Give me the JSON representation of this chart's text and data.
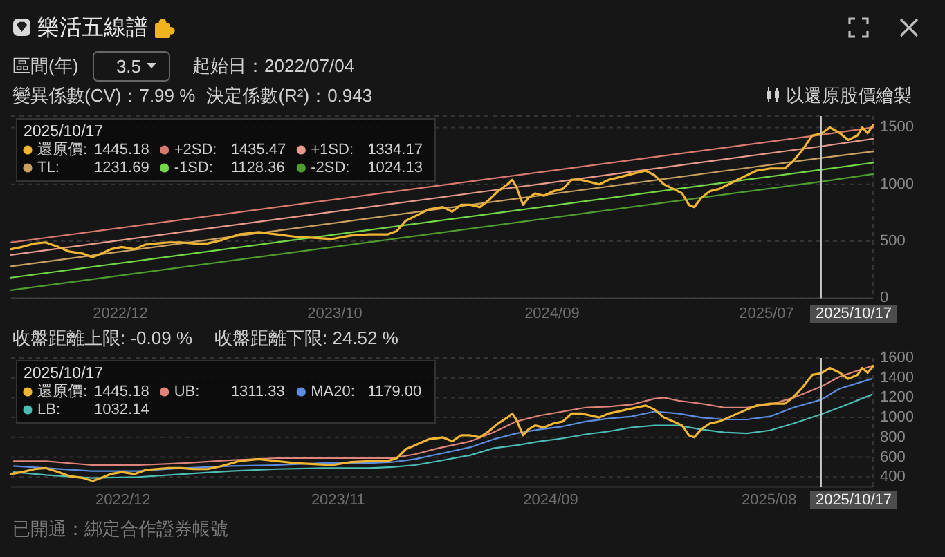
{
  "chart_data": [
    {
      "type": "line",
      "title": "樂活五線譜",
      "annotations": [
        "區間(年)",
        "3.5",
        "起始日：2022/07/04",
        "變異係數(CV)：7.99 %",
        "決定係數(R²)：0.943",
        "以還原股價繪製",
        "1445.18",
        "1435.47",
        "1334.17",
        "1231.69",
        "1128.36",
        "1024.13"
      ],
      "xlim": [
        "2022-07-04",
        "2026-01-02"
      ],
      "xticks": [
        {
          "value": "2022-12-13",
          "label": "2022/12"
        },
        {
          "value": "2023-10-27",
          "label": "2023/10"
        },
        {
          "value": "2024-09-13",
          "label": "2024/09"
        },
        {
          "value": "2025-07-28",
          "label": "2025/07"
        }
      ],
      "ylim": [
        0,
        1600
      ],
      "yticks": [
        0,
        500,
        1000,
        1500
      ],
      "grid": "y",
      "legend": "top left",
      "legend_title": "2025/10/17",
      "ref_lines": [
        {
          "axis": "x",
          "value": "2025-10-17",
          "label": "2025/10/17"
        }
      ],
      "series": [
        {
          "name": "還原價:",
          "color": "#f0b533",
          "x": [
            "2022-07-04",
            "2022-07-20",
            "2022-08-08",
            "2022-08-24",
            "2022-09-12",
            "2022-09-28",
            "2022-10-19",
            "2022-11-02",
            "2022-11-18",
            "2022-11-29",
            "2022-12-15",
            "2023-01-03",
            "2023-01-19",
            "2023-02-04",
            "2023-02-23",
            "2023-03-13",
            "2023-04-01",
            "2023-04-21",
            "2023-05-12",
            "2023-06-07",
            "2023-07-06",
            "2023-08-02",
            "2023-08-29",
            "2023-09-26",
            "2023-10-23",
            "2023-11-19",
            "2023-12-17",
            "2024-01-13",
            "2024-01-27",
            "2024-02-09",
            "2024-02-23",
            "2024-03-14",
            "2024-04-04",
            "2024-04-18",
            "2024-05-01",
            "2024-05-15",
            "2024-05-29",
            "2024-06-11",
            "2024-06-25",
            "2024-07-09",
            "2024-07-16",
            "2024-07-22",
            "2024-08-01",
            "2024-08-09",
            "2024-08-19",
            "2024-09-01",
            "2024-09-15",
            "2024-09-29",
            "2024-10-12",
            "2024-10-26",
            "2024-11-09",
            "2024-11-22",
            "2024-12-06",
            "2024-12-20",
            "2025-01-02",
            "2025-01-16",
            "2025-01-30",
            "2025-02-12",
            "2025-02-26",
            "2025-03-12",
            "2025-03-25",
            "2025-04-04",
            "2025-04-12",
            "2025-04-22",
            "2025-05-05",
            "2025-05-19",
            "2025-06-02",
            "2025-06-15",
            "2025-06-29",
            "2025-07-13",
            "2025-08-03",
            "2025-08-24",
            "2025-09-05",
            "2025-09-19",
            "2025-10-04",
            "2025-10-17",
            "2025-10-30",
            "2025-11-14",
            "2025-11-26",
            "2025-12-10",
            "2025-12-17",
            "2025-12-25",
            "2026-01-02"
          ],
          "values": [
            430,
            450,
            480,
            490,
            450,
            410,
            390,
            360,
            400,
            430,
            450,
            430,
            470,
            480,
            490,
            490,
            480,
            480,
            510,
            560,
            580,
            560,
            540,
            530,
            520,
            550,
            560,
            560,
            590,
            680,
            720,
            780,
            800,
            760,
            820,
            820,
            800,
            860,
            940,
            1000,
            1040,
            980,
            820,
            880,
            920,
            900,
            940,
            960,
            1040,
            1040,
            1020,
            1000,
            1040,
            1060,
            1080,
            1100,
            1120,
            1080,
            1000,
            960,
            920,
            820,
            800,
            880,
            940,
            960,
            1000,
            1040,
            1080,
            1120,
            1140,
            1140,
            1200,
            1300,
            1430,
            1445.18,
            1500,
            1450,
            1390,
            1430,
            1500,
            1450,
            1520
          ]
        },
        {
          "name": "+2SD:",
          "color": "#d9796e",
          "x": [
            "2022-07-04",
            "2025-10-17",
            "2026-01-02"
          ],
          "values": [
            490,
            1435.47,
            1500
          ]
        },
        {
          "name": "+1SD:",
          "color": "#e89a8c",
          "x": [
            "2022-07-04",
            "2025-10-17",
            "2026-01-02"
          ],
          "values": [
            380,
            1334.17,
            1400
          ]
        },
        {
          "name": "TL:",
          "color": "#c9a060",
          "x": [
            "2022-07-04",
            "2025-10-17",
            "2026-01-02"
          ],
          "values": [
            280,
            1231.69,
            1290
          ]
        },
        {
          "name": "-1SD:",
          "color": "#72d848",
          "x": [
            "2022-07-04",
            "2025-10-17",
            "2026-01-02"
          ],
          "values": [
            180,
            1128.36,
            1190
          ]
        },
        {
          "name": "-2SD:",
          "color": "#4e9d2e",
          "x": [
            "2022-07-04",
            "2025-10-17",
            "2026-01-02"
          ],
          "values": [
            70,
            1024.13,
            1090
          ]
        }
      ]
    },
    {
      "type": "line",
      "annotations": [
        "收盤距離上限: -0.09 %",
        "收盤距離下限: 24.52 %",
        "已開通：綁定合作證券帳號",
        "1445.18",
        "1311.33",
        "1179.00",
        "1032.14"
      ],
      "xlim": [
        "2022-07-04",
        "2026-01-02"
      ],
      "xticks": [
        {
          "value": "2022-12-17",
          "label": "2022/12"
        },
        {
          "value": "2023-11-01",
          "label": "2023/11"
        },
        {
          "value": "2024-09-11",
          "label": "2024/09"
        },
        {
          "value": "2025-08-01",
          "label": "2025/08"
        }
      ],
      "ylim": [
        300,
        1600
      ],
      "yticks": [
        400,
        600,
        800,
        1000,
        1200,
        1400,
        1600
      ],
      "grid": "y",
      "legend": "top left",
      "legend_title": "2025/10/17",
      "ref_lines": [
        {
          "axis": "x",
          "value": "2025-10-17",
          "label": "2025/10/17"
        }
      ],
      "series": [
        {
          "name": "還原價:",
          "color": "#f0b533",
          "x": [
            "2022-07-04",
            "2022-07-20",
            "2022-08-08",
            "2022-08-24",
            "2022-09-12",
            "2022-09-28",
            "2022-10-19",
            "2022-11-02",
            "2022-11-18",
            "2022-11-29",
            "2022-12-15",
            "2023-01-03",
            "2023-01-19",
            "2023-02-04",
            "2023-02-23",
            "2023-03-13",
            "2023-04-01",
            "2023-04-21",
            "2023-05-12",
            "2023-06-07",
            "2023-07-06",
            "2023-08-02",
            "2023-08-29",
            "2023-09-26",
            "2023-10-23",
            "2023-11-19",
            "2023-12-17",
            "2024-01-13",
            "2024-01-27",
            "2024-02-09",
            "2024-02-23",
            "2024-03-14",
            "2024-04-04",
            "2024-04-18",
            "2024-05-01",
            "2024-05-15",
            "2024-05-29",
            "2024-06-11",
            "2024-06-25",
            "2024-07-09",
            "2024-07-16",
            "2024-07-22",
            "2024-08-01",
            "2024-08-09",
            "2024-08-19",
            "2024-09-01",
            "2024-09-15",
            "2024-09-29",
            "2024-10-12",
            "2024-10-26",
            "2024-11-09",
            "2024-11-22",
            "2024-12-06",
            "2024-12-20",
            "2025-01-02",
            "2025-01-16",
            "2025-01-30",
            "2025-02-12",
            "2025-02-26",
            "2025-03-12",
            "2025-03-25",
            "2025-04-04",
            "2025-04-12",
            "2025-04-22",
            "2025-05-05",
            "2025-05-19",
            "2025-06-02",
            "2025-06-15",
            "2025-06-29",
            "2025-07-13",
            "2025-08-03",
            "2025-08-24",
            "2025-09-05",
            "2025-09-19",
            "2025-10-04",
            "2025-10-17",
            "2025-10-30",
            "2025-11-14",
            "2025-11-26",
            "2025-12-10",
            "2025-12-17",
            "2025-12-25",
            "2026-01-02"
          ],
          "values": [
            430,
            450,
            480,
            490,
            450,
            410,
            390,
            360,
            400,
            430,
            450,
            430,
            470,
            480,
            490,
            490,
            480,
            480,
            510,
            560,
            580,
            560,
            540,
            530,
            520,
            550,
            560,
            560,
            590,
            680,
            720,
            780,
            800,
            760,
            820,
            820,
            800,
            860,
            940,
            1000,
            1040,
            980,
            820,
            880,
            920,
            900,
            940,
            960,
            1040,
            1040,
            1020,
            1000,
            1040,
            1060,
            1080,
            1100,
            1120,
            1080,
            1000,
            960,
            920,
            820,
            800,
            880,
            940,
            960,
            1000,
            1040,
            1080,
            1120,
            1140,
            1140,
            1200,
            1300,
            1430,
            1445.18,
            1500,
            1450,
            1390,
            1430,
            1500,
            1450,
            1520
          ]
        },
        {
          "name": "UB:",
          "color": "#e0847a",
          "x": [
            "2022-07-08",
            "2022-08-25",
            "2022-11-01",
            "2023-01-09",
            "2023-03-18",
            "2023-05-26",
            "2023-08-02",
            "2023-10-09",
            "2023-12-17",
            "2024-01-20",
            "2024-02-23",
            "2024-03-28",
            "2024-05-15",
            "2024-06-18",
            "2024-07-22",
            "2024-08-26",
            "2024-09-29",
            "2024-11-02",
            "2024-12-06",
            "2025-01-09",
            "2025-02-12",
            "2025-02-26",
            "2025-03-19",
            "2025-04-22",
            "2025-05-26",
            "2025-06-29",
            "2025-08-02",
            "2025-09-06",
            "2025-10-17",
            "2025-11-13",
            "2025-12-31"
          ],
          "values": [
            560,
            560,
            520,
            520,
            540,
            570,
            590,
            590,
            590,
            590,
            630,
            690,
            760,
            850,
            960,
            1020,
            1060,
            1100,
            1110,
            1130,
            1190,
            1200,
            1170,
            1140,
            1100,
            1100,
            1130,
            1200,
            1311.33,
            1410,
            1520
          ]
        },
        {
          "name": "MA20:",
          "color": "#5b8ee0",
          "x": [
            "2022-07-08",
            "2022-08-25",
            "2022-11-01",
            "2023-01-09",
            "2023-03-18",
            "2023-05-26",
            "2023-08-02",
            "2023-10-09",
            "2023-12-17",
            "2024-01-20",
            "2024-02-23",
            "2024-03-28",
            "2024-05-15",
            "2024-06-18",
            "2024-07-22",
            "2024-08-26",
            "2024-09-29",
            "2024-11-02",
            "2024-12-06",
            "2025-01-09",
            "2025-02-12",
            "2025-03-19",
            "2025-04-22",
            "2025-05-26",
            "2025-06-29",
            "2025-08-02",
            "2025-09-06",
            "2025-10-17",
            "2025-11-13",
            "2025-12-31"
          ],
          "values": [
            510,
            490,
            460,
            460,
            490,
            510,
            520,
            540,
            540,
            550,
            580,
            630,
            700,
            780,
            840,
            880,
            910,
            960,
            990,
            1010,
            1060,
            1040,
            1000,
            980,
            980,
            1010,
            1100,
            1179,
            1290,
            1390
          ]
        },
        {
          "name": "LB:",
          "color": "#4cbdb5",
          "x": [
            "2022-07-08",
            "2022-08-25",
            "2022-11-01",
            "2023-01-09",
            "2023-03-18",
            "2023-05-26",
            "2023-08-02",
            "2023-10-09",
            "2023-12-17",
            "2024-01-20",
            "2024-02-23",
            "2024-03-28",
            "2024-05-15",
            "2024-06-18",
            "2024-07-22",
            "2024-08-26",
            "2024-09-29",
            "2024-11-02",
            "2024-12-06",
            "2025-01-09",
            "2025-02-12",
            "2025-03-19",
            "2025-04-22",
            "2025-05-26",
            "2025-06-29",
            "2025-08-02",
            "2025-09-06",
            "2025-10-17",
            "2025-11-13",
            "2025-12-31"
          ],
          "values": [
            450,
            420,
            390,
            400,
            430,
            460,
            480,
            490,
            490,
            500,
            520,
            560,
            620,
            690,
            720,
            760,
            790,
            830,
            860,
            900,
            920,
            920,
            880,
            850,
            840,
            870,
            940,
            1032.14,
            1100,
            1230
          ]
        }
      ]
    }
  ]
}
